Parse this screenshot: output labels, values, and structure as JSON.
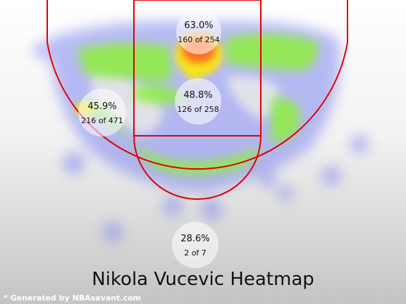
{
  "chart_data": {
    "type": "heatmap",
    "title": "Nikola Vucevic Heatmap",
    "zones": [
      {
        "name": "restricted-area",
        "pct_label": "63.0%",
        "made": 160,
        "attempts": 254,
        "count_label": "160 of 254"
      },
      {
        "name": "paint-non-ra",
        "pct_label": "48.8%",
        "made": 126,
        "attempts": 258,
        "count_label": "126 of 258"
      },
      {
        "name": "mid-range",
        "pct_label": "45.9%",
        "made": 216,
        "attempts": 471,
        "count_label": "216 of 471"
      },
      {
        "name": "three-point",
        "pct_label": "28.6%",
        "made": 2,
        "attempts": 7,
        "count_label": "2 of 7"
      }
    ]
  },
  "footer": {
    "credit": "* Generated by NBAsavant.com"
  },
  "colors": {
    "court_lines": "#e00000",
    "hot": "#ff6a2a",
    "warm": "#ffe900",
    "mid": "#8ef03a",
    "cool": "#8a8ef0"
  }
}
